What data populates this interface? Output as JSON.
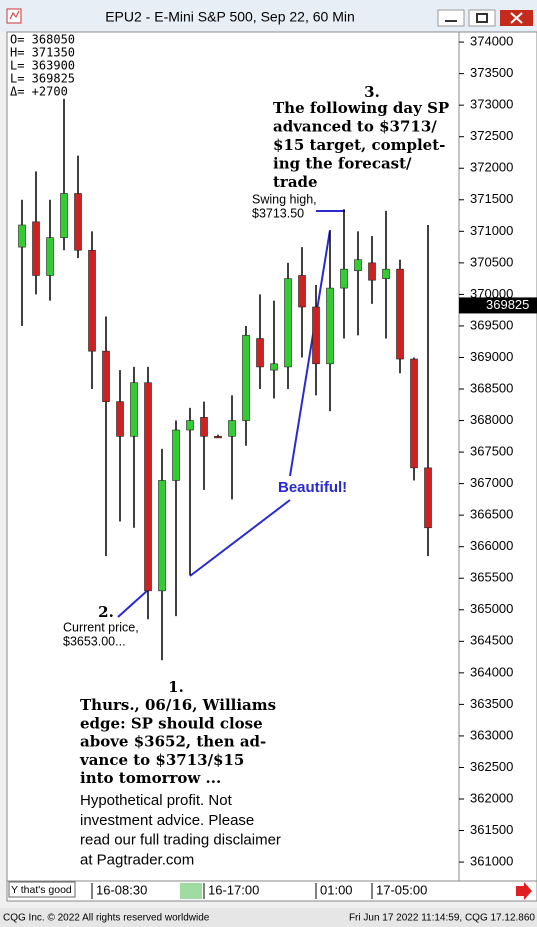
{
  "window": {
    "title": "EPU2 - E-Mini S&P 500, Sep 22, 60 Min"
  },
  "chart_data": {
    "type": "candlestick",
    "info_lines": [
      "O= 368050",
      "H= 371350",
      "L= 363900",
      "L= 369825",
      "Δ=   +2700"
    ],
    "categories": [
      null,
      null,
      null,
      null,
      null,
      "16-08:30",
      null,
      null,
      null,
      null,
      null,
      null,
      null,
      "16-17:00",
      null,
      null,
      null,
      null,
      null,
      null,
      null,
      "01:00",
      null,
      null,
      null,
      "17-05:00",
      null,
      null,
      null,
      null
    ],
    "open": [
      370750,
      371150,
      370300,
      370900,
      371600,
      370700,
      369100,
      368300,
      367750,
      368600,
      365300,
      367050,
      367850,
      368050,
      367750,
      367750,
      368000,
      369300,
      368800,
      368850,
      370300,
      369800,
      368900,
      370100,
      370375,
      370500,
      370250,
      370400,
      368975,
      367250
    ],
    "high": [
      371500,
      371950,
      371500,
      373100,
      372200,
      371000,
      369650,
      368800,
      368850,
      368850,
      367550,
      368000,
      368200,
      368300,
      367775,
      368400,
      369500,
      370000,
      369900,
      370500,
      370750,
      370150,
      371000,
      371350,
      371000,
      370925,
      371325,
      370550,
      369000,
      371100
    ],
    "low": [
      369500,
      370000,
      369900,
      370700,
      370575,
      368500,
      365850,
      366400,
      366300,
      364850,
      364200,
      364900,
      365550,
      366900,
      367725,
      366750,
      367600,
      368500,
      368350,
      368500,
      369000,
      368400,
      368150,
      369300,
      369350,
      369850,
      369300,
      368750,
      367050,
      365850
    ],
    "close": [
      371100,
      370300,
      370900,
      371600,
      370700,
      369100,
      368300,
      367750,
      368600,
      365300,
      367050,
      367850,
      368000,
      367750,
      367725,
      368000,
      369350,
      368850,
      368900,
      370250,
      369800,
      368900,
      370100,
      370400,
      370550,
      370225,
      370400,
      368975,
      367250,
      366300
    ],
    "up_color": "#33cc33",
    "down_color": "#cc2222",
    "last_price": 369825,
    "ylim": [
      360700,
      374160
    ],
    "yticks": [
      361000,
      361500,
      362000,
      362500,
      363000,
      363500,
      364000,
      364500,
      365000,
      365500,
      366000,
      366500,
      367000,
      367500,
      368000,
      368500,
      369000,
      369500,
      370000,
      370500,
      371000,
      371500,
      372000,
      372500,
      373000,
      373500,
      374000
    ]
  },
  "annotations": {
    "note3_number": "3.",
    "note3_lines": [
      "The following day SP",
      "advanced to $3713/",
      "$15 target, complet-",
      "ing the forecast/",
      "trade"
    ],
    "swing_lines": [
      "Swing high,",
      "$3713.50"
    ],
    "beautiful": "Beautiful!",
    "note2_number": "2.",
    "note2_lines": [
      "Current price,",
      "$3653.00..."
    ],
    "note1_number": "1.",
    "note1_lines": [
      "Thurs., 06/16, Williams",
      "edge: SP should close",
      "above $3652, then ad-",
      "vance to $3713/$15",
      "into tomorrow ..."
    ],
    "disclaimer_lines": [
      "Hypothetical profit. Not",
      "investment advice. Please",
      "read our full trading disclaimer",
      "at Pagtrader.com"
    ]
  },
  "status": {
    "box": "Y that's good"
  },
  "footer": {
    "left": "CQG Inc. © 2022 All rights reserved worldwide",
    "right": "Fri Jun 17 2022 11:14:59, CQG 17.12.860"
  }
}
